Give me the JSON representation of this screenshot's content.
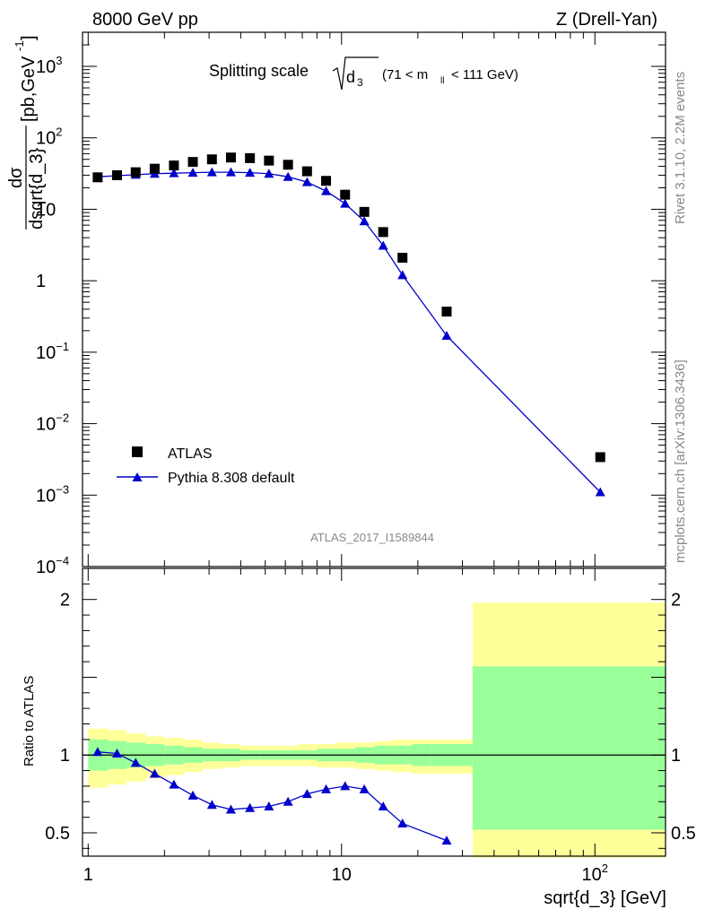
{
  "header": {
    "left_title": "8000 GeV pp",
    "right_title": "Z (Drell-Yan)"
  },
  "side_labels": {
    "rivet": "Rivet 3.1.10,  2.2M events",
    "mcplots": "mcplots.cern.ch [arXiv:1306.3436]"
  },
  "plot_title": {
    "main": "Splitting scale",
    "sqrt_d": "d",
    "sqrt_sub": "3",
    "range_prefix": "(71 < m",
    "range_sub": "ll",
    "range_suffix": "< 111 GeV)"
  },
  "watermark": "ATLAS_2017_I1589844",
  "axes": {
    "ylabel_num": "dσ",
    "ylabel_den": "dsqrt{d_3}",
    "ylabel_units": "[pb,GeV",
    "ylabel_units_sup": "-1",
    "ylabel_units_close": "]",
    "ratio_ylabel": "Ratio to ATLAS",
    "xlabel": "sqrt{d_3} [GeV]",
    "x_ticks": [
      {
        "v": 1,
        "t": "1"
      },
      {
        "v": 10,
        "t": "10"
      },
      {
        "v": 100,
        "t": "10",
        "sup": "2"
      }
    ],
    "y_ticks_main": [
      {
        "v": 1000,
        "t": "10",
        "sup": "3"
      },
      {
        "v": 100,
        "t": "10",
        "sup": "2"
      },
      {
        "v": 10,
        "t": "10",
        "sup": ""
      },
      {
        "v": 1,
        "t": "1",
        "sup": ""
      },
      {
        "v": 0.1,
        "t": "10",
        "sup": "−1"
      },
      {
        "v": 0.01,
        "t": "10",
        "sup": "−2"
      },
      {
        "v": 0.001,
        "t": "10",
        "sup": "−3"
      },
      {
        "v": 0.0001,
        "t": "10",
        "sup": "−4"
      }
    ],
    "y_ticks_ratio": [
      {
        "v": 2,
        "t": "2"
      },
      {
        "v": 1,
        "t": "1"
      },
      {
        "v": 0.5,
        "t": "0.5"
      }
    ]
  },
  "legend": {
    "data_label": "ATLAS",
    "mc_label": "Pythia 8.308 default"
  },
  "colors": {
    "mc": "#0000cc",
    "band_inner": "#99ff99",
    "band_outer": "#ffff99"
  },
  "chart_data": {
    "type": "scatter",
    "x_scale": "log",
    "y_scale": "log",
    "xlim": [
      0.95,
      190
    ],
    "ylim": [
      0.0001,
      3000
    ],
    "ratio_ylim": [
      0.35,
      2.2
    ],
    "series": [
      {
        "name": "ATLAS",
        "x": [
          1.09,
          1.3,
          1.54,
          1.83,
          2.18,
          2.59,
          3.08,
          3.66,
          4.35,
          5.17,
          6.15,
          7.31,
          8.69,
          10.33,
          12.3,
          14.6,
          17.4,
          26.0,
          105.0
        ],
        "y": [
          28,
          30,
          33,
          37,
          41,
          46,
          50,
          53,
          52,
          48,
          42,
          34,
          25,
          16,
          9.2,
          4.8,
          2.1,
          0.37,
          0.0034
        ]
      },
      {
        "name": "Pythia 8.308 default",
        "x": [
          1.09,
          1.3,
          1.54,
          1.83,
          2.18,
          2.59,
          3.08,
          3.66,
          4.35,
          5.17,
          6.15,
          7.31,
          8.69,
          10.33,
          12.3,
          14.6,
          17.4,
          26.0,
          105.0
        ],
        "y": [
          28.5,
          29.5,
          30.5,
          31.5,
          32,
          32.5,
          33,
          33,
          32.5,
          31.5,
          28.5,
          24,
          18,
          12,
          6.8,
          3.1,
          1.2,
          0.17,
          0.0011
        ]
      }
    ],
    "ratio": {
      "name": "Pythia 8.308 default",
      "x": [
        1.09,
        1.3,
        1.54,
        1.83,
        2.18,
        2.59,
        3.08,
        3.66,
        4.35,
        5.17,
        6.15,
        7.31,
        8.69,
        10.33,
        12.3,
        14.6,
        17.4,
        26.0
      ],
      "y": [
        1.02,
        1.01,
        0.95,
        0.88,
        0.81,
        0.74,
        0.68,
        0.65,
        0.66,
        0.67,
        0.7,
        0.75,
        0.78,
        0.8,
        0.78,
        0.67,
        0.56,
        0.45
      ]
    },
    "uncertainty_bands": {
      "edges": [
        1.0,
        1.2,
        1.42,
        1.69,
        2.0,
        2.38,
        2.83,
        3.36,
        4.0,
        4.76,
        5.66,
        6.73,
        8.0,
        9.51,
        11.3,
        13.5,
        16.0,
        19.0,
        22.6,
        32.9,
        190.0
      ],
      "inner_low": [
        0.9,
        0.91,
        0.92,
        0.93,
        0.94,
        0.95,
        0.96,
        0.96,
        0.97,
        0.97,
        0.97,
        0.97,
        0.96,
        0.96,
        0.95,
        0.94,
        0.94,
        0.93,
        0.93,
        0.52
      ],
      "inner_high": [
        1.1,
        1.09,
        1.08,
        1.07,
        1.06,
        1.05,
        1.04,
        1.04,
        1.03,
        1.03,
        1.03,
        1.03,
        1.04,
        1.04,
        1.05,
        1.06,
        1.06,
        1.07,
        1.07,
        1.57
      ],
      "outer_low": [
        0.79,
        0.81,
        0.83,
        0.85,
        0.87,
        0.89,
        0.91,
        0.92,
        0.93,
        0.93,
        0.93,
        0.93,
        0.92,
        0.92,
        0.91,
        0.9,
        0.89,
        0.88,
        0.88,
        0.34
      ],
      "outer_high": [
        1.17,
        1.16,
        1.14,
        1.12,
        1.11,
        1.1,
        1.08,
        1.07,
        1.06,
        1.06,
        1.06,
        1.07,
        1.07,
        1.08,
        1.08,
        1.09,
        1.1,
        1.1,
        1.1,
        1.98
      ]
    }
  }
}
